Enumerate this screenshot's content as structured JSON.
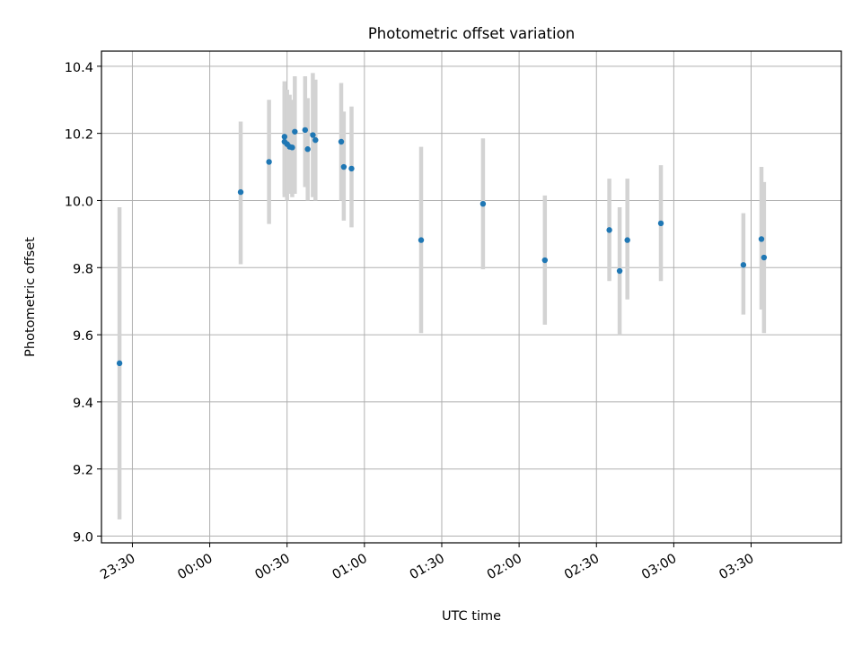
{
  "chart_data": {
    "type": "scatter",
    "title": "Photometric offset variation",
    "xlabel": "UTC time",
    "ylabel": "Photometric offset",
    "x_unit": "time of day (UTC), continuing past midnight",
    "xlim": [
      "23:18",
      "04:05"
    ],
    "ylim": [
      8.98,
      10.445
    ],
    "x_ticks": [
      "23:30",
      "00:00",
      "00:30",
      "01:00",
      "01:30",
      "02:00",
      "02:30",
      "03:00",
      "03:30"
    ],
    "y_ticks": [
      "9.0",
      "9.2",
      "9.4",
      "9.6",
      "9.8",
      "10.0",
      "10.2",
      "10.4"
    ],
    "y_tick_values": [
      9.0,
      9.2,
      9.4,
      9.6,
      9.8,
      10.0,
      10.2,
      10.4
    ],
    "grid": true,
    "marker_color": "#1f77b4",
    "errorbar_color": "#d3d3d3",
    "points": [
      {
        "x": "23:25",
        "y": 9.515,
        "y_low": 9.05,
        "y_high": 9.98
      },
      {
        "x": "00:12",
        "y": 10.025,
        "y_low": 9.81,
        "y_high": 10.235
      },
      {
        "x": "00:23",
        "y": 10.115,
        "y_low": 9.93,
        "y_high": 10.3
      },
      {
        "x": "00:29",
        "y": 10.19,
        "y_low": 10.02,
        "y_high": 10.355
      },
      {
        "x": "00:29",
        "y": 10.175,
        "y_low": 10.01,
        "y_high": 10.34
      },
      {
        "x": "00:30",
        "y": 10.168,
        "y_low": 10.0,
        "y_high": 10.33
      },
      {
        "x": "00:31",
        "y": 10.16,
        "y_low": 10.02,
        "y_high": 10.315
      },
      {
        "x": "00:32",
        "y": 10.158,
        "y_low": 10.01,
        "y_high": 10.3
      },
      {
        "x": "00:33",
        "y": 10.205,
        "y_low": 10.02,
        "y_high": 10.37
      },
      {
        "x": "00:37",
        "y": 10.21,
        "y_low": 10.04,
        "y_high": 10.37
      },
      {
        "x": "00:38",
        "y": 10.153,
        "y_low": 10.0,
        "y_high": 10.305
      },
      {
        "x": "00:40",
        "y": 10.195,
        "y_low": 10.01,
        "y_high": 10.38
      },
      {
        "x": "00:41",
        "y": 10.18,
        "y_low": 10.0,
        "y_high": 10.36
      },
      {
        "x": "00:51",
        "y": 10.175,
        "y_low": 10.0,
        "y_high": 10.35
      },
      {
        "x": "00:52",
        "y": 10.1,
        "y_low": 9.94,
        "y_high": 10.265
      },
      {
        "x": "00:55",
        "y": 10.095,
        "y_low": 9.92,
        "y_high": 10.28
      },
      {
        "x": "01:22",
        "y": 9.882,
        "y_low": 9.605,
        "y_high": 10.16
      },
      {
        "x": "01:46",
        "y": 9.99,
        "y_low": 9.795,
        "y_high": 10.185
      },
      {
        "x": "02:10",
        "y": 9.822,
        "y_low": 9.63,
        "y_high": 10.015
      },
      {
        "x": "02:35",
        "y": 9.912,
        "y_low": 9.76,
        "y_high": 10.065
      },
      {
        "x": "02:39",
        "y": 9.79,
        "y_low": 9.6,
        "y_high": 9.98
      },
      {
        "x": "02:42",
        "y": 9.882,
        "y_low": 9.705,
        "y_high": 10.065
      },
      {
        "x": "02:55",
        "y": 9.932,
        "y_low": 9.76,
        "y_high": 10.105
      },
      {
        "x": "03:27",
        "y": 9.808,
        "y_low": 9.66,
        "y_high": 9.962
      },
      {
        "x": "03:34",
        "y": 9.885,
        "y_low": 9.675,
        "y_high": 10.1
      },
      {
        "x": "03:35",
        "y": 9.83,
        "y_low": 9.605,
        "y_high": 10.055
      }
    ]
  }
}
